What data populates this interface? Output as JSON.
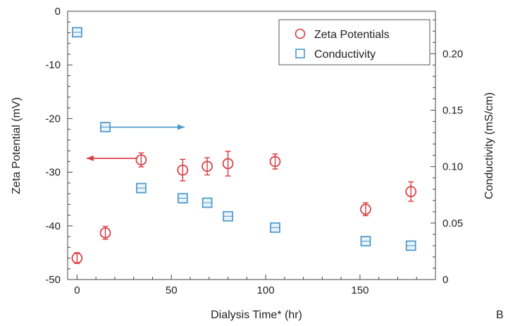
{
  "chart_data": {
    "type": "scatter",
    "panel_label": "B",
    "xlabel": "Dialysis Time* (hr)",
    "ylabel_left": "Zeta Potential (mV)",
    "ylabel_right": "Conductivity (mS/cm)",
    "x_ticks": [
      "0",
      "50",
      "100",
      "150"
    ],
    "y_left_ticks": [
      "0",
      "-10",
      "-20",
      "-30",
      "-40",
      "-50"
    ],
    "y_right_ticks": [
      "0",
      "0.05",
      "0.10",
      "0.15",
      "0.20"
    ],
    "xlim": [
      -5,
      190
    ],
    "ylim_left": [
      -50,
      0
    ],
    "ylim_right": [
      0,
      0.2376
    ],
    "grid": false,
    "legend_position": "top-right",
    "series": [
      {
        "name": "Zeta Potentials",
        "axis": "left",
        "marker": "circle",
        "color": "#d9393f",
        "points": [
          {
            "x": 0,
            "y": -46.0,
            "err": 1.0
          },
          {
            "x": 15,
            "y": -41.3,
            "err": 1.2
          },
          {
            "x": 34,
            "y": -27.7,
            "err": 1.3
          },
          {
            "x": 56,
            "y": -29.6,
            "err": 2.0
          },
          {
            "x": 69,
            "y": -28.9,
            "err": 1.6
          },
          {
            "x": 80,
            "y": -28.4,
            "err": 2.3
          },
          {
            "x": 105,
            "y": -28.0,
            "err": 1.4
          },
          {
            "x": 153,
            "y": -36.9,
            "err": 1.2
          },
          {
            "x": 177,
            "y": -33.6,
            "err": 1.8
          }
        ]
      },
      {
        "name": "Conductivity",
        "axis": "right",
        "marker": "square",
        "color": "#4a97cc",
        "points": [
          {
            "x": 0,
            "y": 0.219,
            "err": 0.002
          },
          {
            "x": 15,
            "y": 0.135,
            "err": 0.002
          },
          {
            "x": 34,
            "y": 0.081,
            "err": 0.002
          },
          {
            "x": 56,
            "y": 0.072,
            "err": 0.002
          },
          {
            "x": 69,
            "y": 0.068,
            "err": 0.002
          },
          {
            "x": 80,
            "y": 0.056,
            "err": 0.002
          },
          {
            "x": 105,
            "y": 0.046,
            "err": 0.002
          },
          {
            "x": 153,
            "y": 0.034,
            "err": 0.002
          },
          {
            "x": 177,
            "y": 0.03,
            "err": 0.002
          }
        ]
      }
    ],
    "annotations": [
      {
        "type": "arrow",
        "color": "#d9393f",
        "from": {
          "x": 32,
          "y": -27.4
        },
        "to": {
          "x": 5,
          "y": -27.4
        },
        "axis": "left",
        "meaning": "points to left axis"
      },
      {
        "type": "arrow",
        "color": "#4a97cc",
        "from": {
          "x": 17,
          "y": 0.135
        },
        "to": {
          "x": 57,
          "y": 0.135
        },
        "axis": "right",
        "meaning": "points to right axis"
      }
    ]
  }
}
